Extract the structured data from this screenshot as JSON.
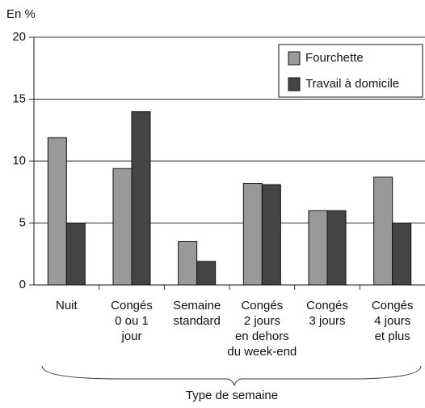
{
  "chart_data": {
    "type": "bar",
    "y_axis_label": "En %",
    "x_axis_label": "Type de semaine",
    "categories": [
      "Nuit",
      "Congés\n0 ou 1\njour",
      "Semaine\nstandard",
      "Congés\n2 jours\nen dehors\ndu week-end",
      "Congés\n3 jours",
      "Congés\n4 jours\net plus"
    ],
    "series": [
      {
        "name": "Fourchette",
        "color": "#999999",
        "values": [
          11.9,
          9.4,
          3.5,
          8.2,
          6,
          8.7
        ]
      },
      {
        "name": "Travail à domicile",
        "color": "#444444",
        "values": [
          5,
          14,
          1.9,
          8.1,
          6,
          5
        ]
      }
    ],
    "ylim": [
      0,
      20
    ],
    "yticks": [
      0,
      5,
      10,
      15,
      20
    ],
    "grid": true,
    "legend": "top-right"
  }
}
